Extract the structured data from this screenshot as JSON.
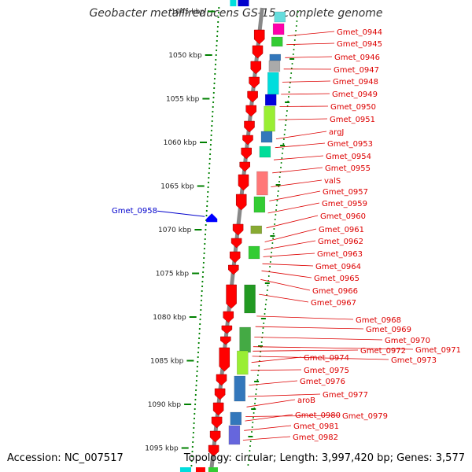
{
  "title": "Geobacter metallireducens GS-15, complete genome",
  "footer": {
    "accession": "Accession: NC_007517",
    "summary": "Topology: circular; Length: 3,997,420 bp; Genes: 3,577"
  },
  "colors": {
    "forward_gene": "#ff0000",
    "reverse_gene": "#0000ff",
    "backbone": "#888888",
    "ruler": "#008000",
    "label": "#dd0000",
    "label_highlight": "#0000cc"
  },
  "ruler": {
    "unit": "kbp",
    "ticks": [
      {
        "kbp": 1045,
        "label": "1045 kbp"
      },
      {
        "kbp": 1050,
        "label": "1050 kbp"
      },
      {
        "kbp": 1055,
        "label": "1055 kbp"
      },
      {
        "kbp": 1060,
        "label": "1060 kbp"
      },
      {
        "kbp": 1065,
        "label": "1065 kbp"
      },
      {
        "kbp": 1070,
        "label": "1070 kbp"
      },
      {
        "kbp": 1075,
        "label": "1075 kbp"
      },
      {
        "kbp": 1080,
        "label": "1080 kbp"
      },
      {
        "kbp": 1085,
        "label": "1085 kbp"
      },
      {
        "kbp": 1090,
        "label": "1090 kbp"
      },
      {
        "kbp": 1095,
        "label": "1095 kbp"
      }
    ]
  },
  "highlight_gene": {
    "label": "Gmet_0958",
    "strand": "reverse",
    "kbp": 1068.4
  },
  "genes": [
    {
      "label": "Gmet_0944",
      "kbp": 1047.8
    },
    {
      "label": "Gmet_0945",
      "kbp": 1048.8
    },
    {
      "label": "Gmet_0946",
      "kbp": 1050.3
    },
    {
      "label": "Gmet_0947",
      "kbp": 1051.6
    },
    {
      "label": "Gmet_0948",
      "kbp": 1053.1
    },
    {
      "label": "Gmet_0949",
      "kbp": 1054.5
    },
    {
      "label": "Gmet_0950",
      "kbp": 1055.9
    },
    {
      "label": "Gmet_0951",
      "kbp": 1057.4
    },
    {
      "label": "argJ",
      "kbp": 1059.6
    },
    {
      "label": "Gmet_0953",
      "kbp": 1060.6
    },
    {
      "label": "Gmet_0954",
      "kbp": 1062.0
    },
    {
      "label": "Gmet_0955",
      "kbp": 1063.5
    },
    {
      "label": "valS",
      "kbp": 1065.1
    },
    {
      "label": "Gmet_0957",
      "kbp": 1066.7
    },
    {
      "label": "Gmet_0959",
      "kbp": 1068.1
    },
    {
      "label": "Gmet_0960",
      "kbp": 1069.8
    },
    {
      "label": "Gmet_0961",
      "kbp": 1071.4
    },
    {
      "label": "Gmet_0962",
      "kbp": 1072.3
    },
    {
      "label": "Gmet_0963",
      "kbp": 1073.1
    },
    {
      "label": "Gmet_0964",
      "kbp": 1073.9
    },
    {
      "label": "Gmet_0965",
      "kbp": 1074.7
    },
    {
      "label": "Gmet_0966",
      "kbp": 1075.7
    },
    {
      "label": "Gmet_0967",
      "kbp": 1077.4
    },
    {
      "label": "Gmet_0968",
      "kbp": 1079.9
    },
    {
      "label": "Gmet_0969",
      "kbp": 1081.1
    },
    {
      "label": "Gmet_0970",
      "kbp": 1082.3
    },
    {
      "label": "Gmet_0971",
      "kbp": 1083.4
    },
    {
      "label": "Gmet_0972",
      "kbp": 1083.9
    },
    {
      "label": "Gmet_0973",
      "kbp": 1084.5
    },
    {
      "label": "Gmet_0974",
      "kbp": 1085.2
    },
    {
      "label": "Gmet_0975",
      "kbp": 1086.1
    },
    {
      "label": "Gmet_0976",
      "kbp": 1087.8
    },
    {
      "label": "Gmet_0977",
      "kbp": 1089.1
    },
    {
      "label": "aroB",
      "kbp": 1090.3
    },
    {
      "label": "Gmet_0979",
      "kbp": 1091.4
    },
    {
      "label": "Gmet_0980",
      "kbp": 1091.9
    },
    {
      "label": "Gmet_0981",
      "kbp": 1093.0
    },
    {
      "label": "Gmet_0982",
      "kbp": 1094.1
    }
  ]
}
